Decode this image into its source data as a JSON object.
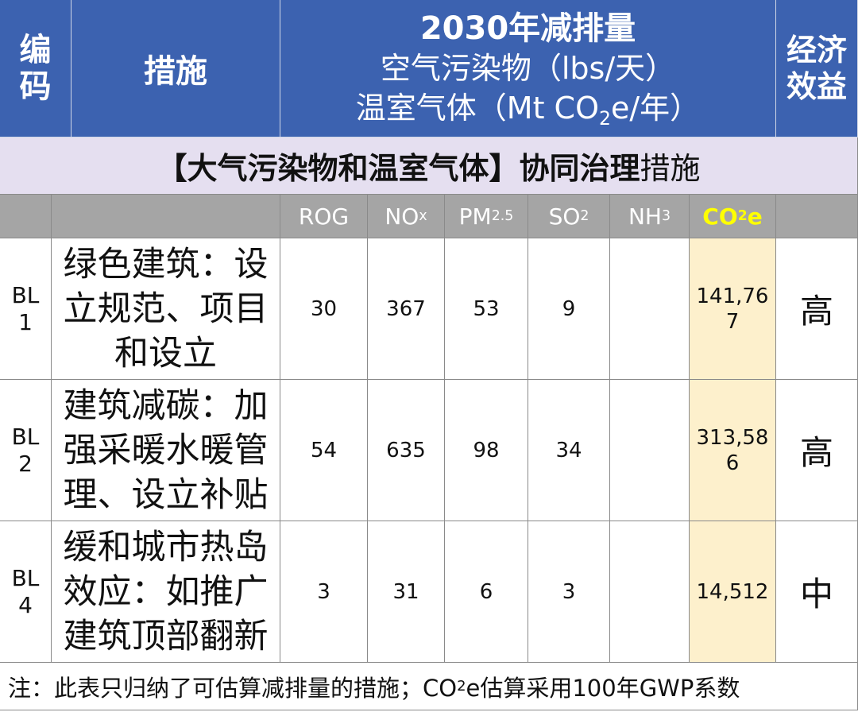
{
  "header": {
    "code": "编码",
    "measure": "措施",
    "reduction_title": "2030年减排量",
    "air_unit": "空气污染物（lbs/天）",
    "ghg_unit": {
      "before": "温室气体（Mt CO",
      "sub": "2",
      "after": "e/年）"
    },
    "benefit": "经济效益"
  },
  "section": {
    "bold": "【大气污染物和温室气体】协同治理",
    "normal": "措施"
  },
  "columns": [
    "ROG",
    {
      "before": "NO",
      "sub": "x"
    },
    {
      "before": "PM",
      "sub": "2.5"
    },
    {
      "before": "SO",
      "sub": "2"
    },
    {
      "before": "NH",
      "sub": "3"
    },
    {
      "before": "CO",
      "sub": "2",
      "after": "e"
    }
  ],
  "rows": [
    {
      "code": "BL 1",
      "measure": "绿色建筑：设立规范、项目和设立",
      "values": [
        "30",
        "367",
        "53",
        "9",
        "",
        "141,767"
      ],
      "benefit": "高"
    },
    {
      "code": "BL 2",
      "measure": "建筑减碳：加强采暖水暖管理、设立补贴",
      "values": [
        "54",
        "635",
        "98",
        "34",
        "",
        "313,586"
      ],
      "benefit": "高"
    },
    {
      "code": "BL 4",
      "measure": "缓和城市热岛效应：如推广建筑顶部翻新",
      "values": [
        "3",
        "31",
        "6",
        "3",
        "",
        "14,512"
      ],
      "benefit": "中"
    }
  ],
  "note": {
    "before": "注：此表只归纳了可估算减排量的措施；CO",
    "sub": "2",
    "after": "e估算采用100年GWP系数"
  }
}
